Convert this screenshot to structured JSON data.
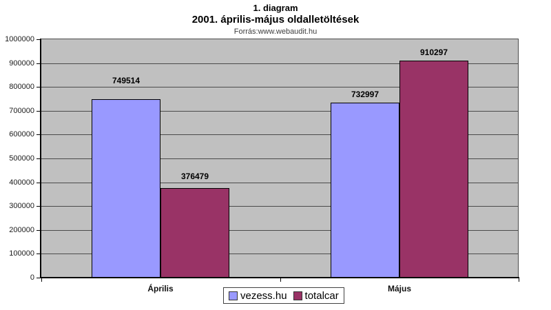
{
  "header": {
    "title": "1. diagram",
    "subtitle": "2001. április-május oldalletöltések",
    "source": "Forrás:www.webaudit.hu"
  },
  "chart_data": {
    "type": "bar",
    "title": "1. diagram",
    "subtitle": "2001. április-május oldalletöltések",
    "annotation": "Forrás:www.webaudit.hu",
    "categories": [
      "Április",
      "Május"
    ],
    "series": [
      {
        "name": "vezess.hu",
        "color": "#9999FF",
        "values": [
          749514,
          732997
        ]
      },
      {
        "name": "totalcar",
        "color": "#993366",
        "values": [
          376479,
          910297
        ]
      }
    ],
    "xlabel": "",
    "ylabel": "",
    "ylim": [
      0,
      1000000
    ],
    "ytick_step": 100000,
    "ytick_labels": [
      "0",
      "100000",
      "200000",
      "300000",
      "400000",
      "500000",
      "600000",
      "700000",
      "800000",
      "900000",
      "1000000"
    ],
    "grid": true,
    "data_labels": true,
    "legend_position": "bottom-center",
    "colors": {
      "plot_background": "#C0C0C0",
      "gridline": "#4a4a4a",
      "axis": "#000000",
      "page_background": "#FFFFFF"
    }
  }
}
